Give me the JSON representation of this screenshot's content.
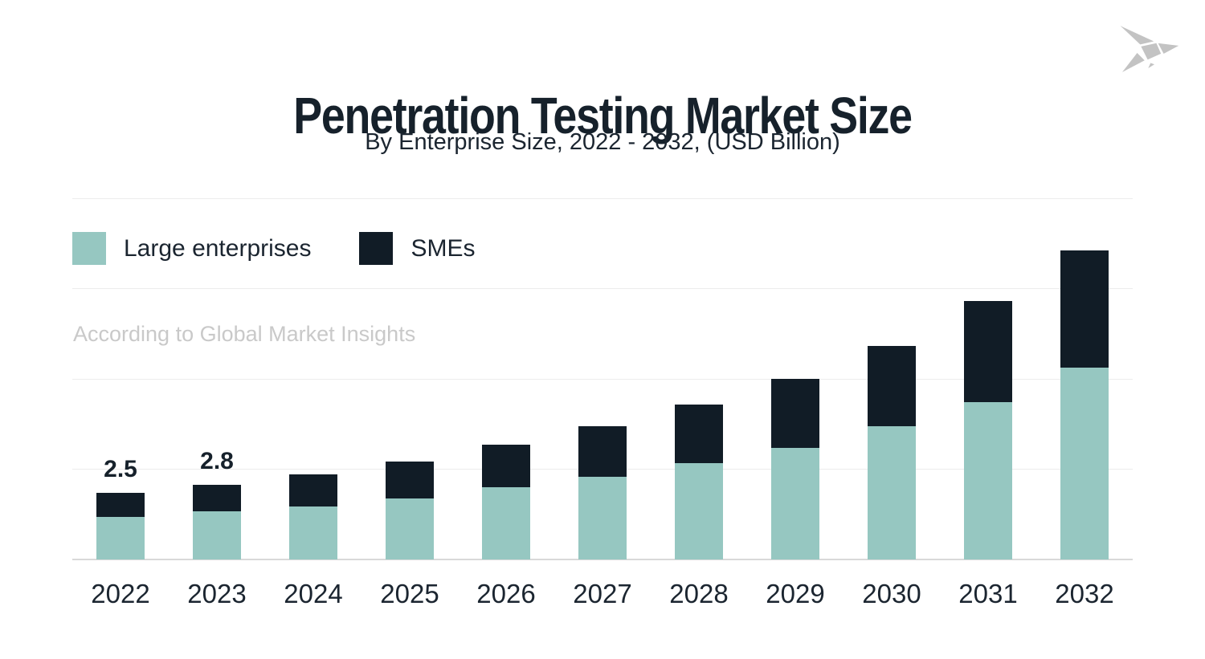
{
  "page": {
    "title": "Penetration Testing Market Size",
    "subtitle": "By Enterprise Size, 2022 - 2032, (USD Billion)",
    "source_note": "According to Global Market Insights",
    "logo_icon": "origami-bird"
  },
  "colors": {
    "large_enterprises": "#96C7C1",
    "smes": "#111C26",
    "heading_text": "#16212B",
    "body_text": "#1B2530",
    "muted_text": "#C9C9C9",
    "gridline": "#ECECEC",
    "axis_line": "#D9D9D9",
    "logo_gray": "#C3C3C3",
    "background": "#FFFFFF"
  },
  "chart_data": {
    "type": "bar",
    "stacked": true,
    "title": "Penetration Testing Market Size",
    "subtitle": "By Enterprise Size, 2022 - 2032, (USD Billion)",
    "source": "According to Global Market Insights",
    "unit": "USD Billion",
    "categories": [
      "2022",
      "2023",
      "2024",
      "2025",
      "2026",
      "2027",
      "2028",
      "2029",
      "2030",
      "2031",
      "2032"
    ],
    "series": [
      {
        "name": "Large enterprises",
        "color": "#96C7C1",
        "values": [
          1.6,
          1.8,
          2.0,
          2.3,
          2.7,
          3.1,
          3.6,
          4.2,
          5.0,
          5.9,
          7.2
        ]
      },
      {
        "name": "SMEs",
        "color": "#111C26",
        "values": [
          0.9,
          1.0,
          1.2,
          1.4,
          1.6,
          1.9,
          2.2,
          2.6,
          3.0,
          3.8,
          4.4
        ]
      }
    ],
    "totals": [
      2.5,
      2.8,
      3.2,
      3.7,
      4.3,
      5.0,
      5.8,
      6.8,
      8.0,
      9.7,
      11.6
    ],
    "total_labels": [
      "2.5",
      "2.8",
      "",
      "",
      "",
      "",
      "",
      "",
      "",
      "",
      ""
    ],
    "xlabel": "",
    "ylabel": "USD Billion",
    "ylim": [
      0,
      13.5
    ],
    "grid": "horizontal-only",
    "value_axis_labels_visible": false,
    "legend_position": "top-left"
  }
}
